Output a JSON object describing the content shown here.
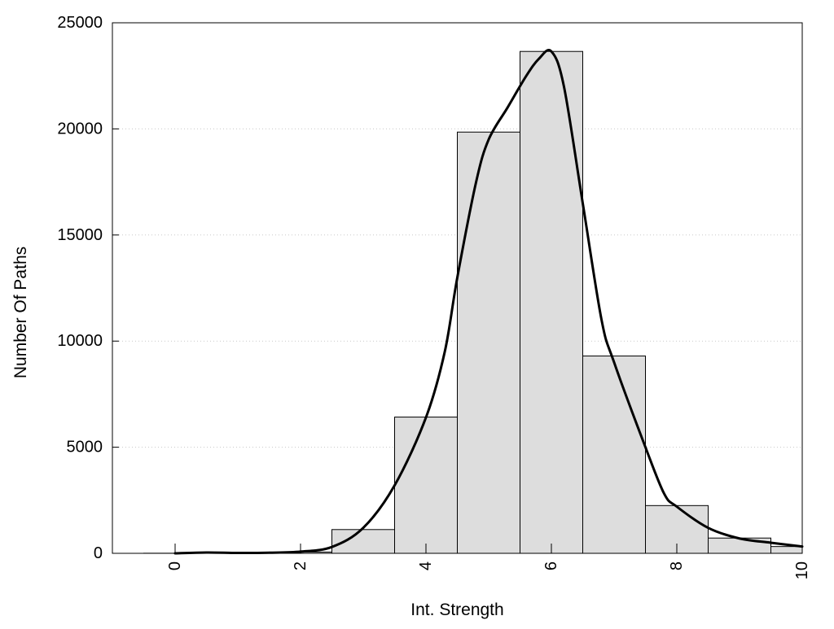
{
  "chart_data": {
    "type": "bar",
    "title": "",
    "xlabel": "Int. Strength",
    "ylabel": "Number Of Paths",
    "xlim": [
      -1,
      10
    ],
    "ylim": [
      0,
      25000
    ],
    "x_ticks": [
      "0",
      "2",
      "4",
      "6",
      "8",
      "10"
    ],
    "y_ticks": [
      "0",
      "5000",
      "10000",
      "15000",
      "20000",
      "25000"
    ],
    "grid": "horizontal dotted",
    "bar_fill": "#dddddd",
    "bar_stroke": "#000000",
    "bins": [
      {
        "x": 0,
        "value": 5
      },
      {
        "x": 1,
        "value": 15
      },
      {
        "x": 2,
        "value": 60
      },
      {
        "x": 3,
        "value": 1120
      },
      {
        "x": 4,
        "value": 6420
      },
      {
        "x": 5,
        "value": 19850
      },
      {
        "x": 6,
        "value": 23650
      },
      {
        "x": 7,
        "value": 9300
      },
      {
        "x": 8,
        "value": 2250
      },
      {
        "x": 9,
        "value": 720
      },
      {
        "x": 10,
        "value": 320
      }
    ],
    "bin_width": 1,
    "curve": {
      "color": "#000000",
      "points": [
        [
          0,
          0
        ],
        [
          0.5,
          40
        ],
        [
          1,
          20
        ],
        [
          1.5,
          30
        ],
        [
          2,
          80
        ],
        [
          2.5,
          300
        ],
        [
          3,
          1200
        ],
        [
          3.5,
          3200
        ],
        [
          4,
          6400
        ],
        [
          4.3,
          9500
        ],
        [
          4.5,
          13000
        ],
        [
          4.8,
          17500
        ],
        [
          5,
          19500
        ],
        [
          5.3,
          21000
        ],
        [
          5.6,
          22500
        ],
        [
          5.8,
          23300
        ],
        [
          6,
          23650
        ],
        [
          6.2,
          22000
        ],
        [
          6.5,
          16500
        ],
        [
          6.8,
          11000
        ],
        [
          7,
          9000
        ],
        [
          7.5,
          5000
        ],
        [
          7.8,
          2800
        ],
        [
          8,
          2200
        ],
        [
          8.5,
          1200
        ],
        [
          9,
          700
        ],
        [
          9.5,
          500
        ],
        [
          10,
          320
        ]
      ]
    }
  }
}
